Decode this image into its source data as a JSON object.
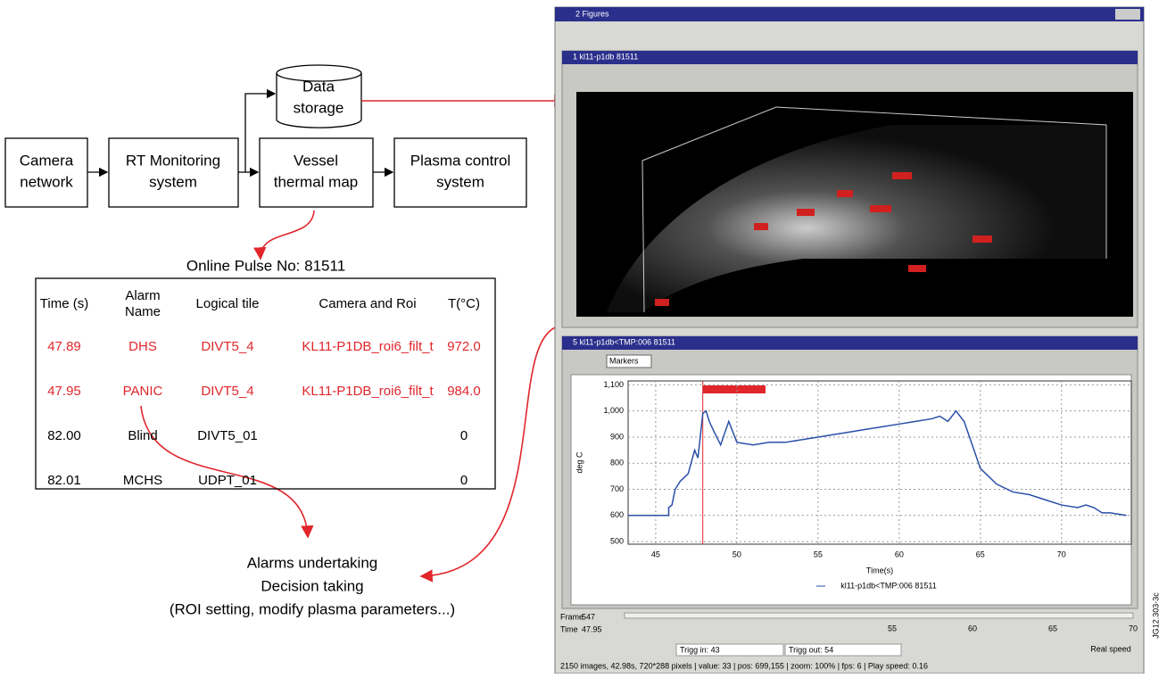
{
  "diagram": {
    "nodes": [
      {
        "lines": [
          "Camera",
          "network"
        ]
      },
      {
        "lines": [
          "RT Monitoring",
          "system"
        ]
      },
      {
        "lines": [
          "Data",
          "storage"
        ]
      },
      {
        "lines": [
          "Vessel",
          "thermal map"
        ]
      },
      {
        "lines": [
          "Plasma control",
          "system"
        ]
      }
    ],
    "outcome": [
      "Alarms undertaking",
      "Decision taking",
      "(ROI setting, modify plasma parameters...)"
    ],
    "figure_id": "JG12.303-3c"
  },
  "table": {
    "title": "Online Pulse No: 81511",
    "headers": [
      [
        "Time (s)"
      ],
      [
        "Alarm",
        "Name"
      ],
      [
        "Logical tile"
      ],
      [
        "Camera and Roi"
      ],
      [
        "T(°C)"
      ]
    ],
    "rows": [
      [
        "47.89",
        "DHS",
        "DIVT5_4",
        "KL11-P1DB_roi6_filt_t",
        "972.0"
      ],
      [
        "47.95",
        "PANIC",
        "DIVT5_4",
        "KL11-P1DB_roi6_filt_t",
        "984.0"
      ],
      [
        "82.00",
        "Blind",
        "DIVT5_01",
        "",
        "0"
      ],
      [
        "82.01",
        "MCHS",
        "UDPT_01",
        "",
        "0"
      ]
    ]
  },
  "window": {
    "title": "2 Figures",
    "panel1_title": "1 kl11-p1db 81511",
    "panel2_title": "5 kl11-p1db<TMP:006 81511",
    "markers": "Markers",
    "frame_label": "Frame",
    "frame": "547",
    "time_label": "Time",
    "time": "47.95",
    "slider_ticks": [
      "55",
      "60",
      "65",
      "70"
    ],
    "trigg_in": "Trigg in: 43",
    "trigg_out": "Trigg out: 54",
    "real_speed": "Real speed",
    "status": "2150 images, 42.98s, 720*288 pixels | value: 33 | pos: 699,155 | zoom: 100% | fps: 6 | Play speed: 0.16"
  },
  "plot": {
    "xlabel": "Time(s)",
    "ylabel": "deg C",
    "legend": "kl11-p1db<TMP:006 81511",
    "xlim": [
      43.3,
      74.3
    ],
    "ylim": [
      490,
      1115
    ],
    "xticks": [
      45,
      50,
      55,
      60,
      65,
      70
    ],
    "yticks": [
      500,
      600,
      700,
      800,
      900,
      {
        "value": 1000,
        "label": "1,000"
      },
      {
        "value": 1100,
        "label": "1,100"
      }
    ],
    "series": [
      {
        "color": "#2a4fa8",
        "x": [
          43.3,
          45,
          45.8,
          45.8,
          46,
          46.2,
          46.5,
          47,
          47.4,
          47.6,
          47.9,
          48.1,
          48.3,
          48.6,
          49,
          49.5,
          50,
          51,
          52,
          53,
          54,
          55,
          56,
          57,
          58,
          59,
          60,
          61,
          62,
          62.5,
          63,
          63.5,
          64,
          64.5,
          65,
          66,
          67,
          68,
          69,
          70,
          71,
          71.5,
          72,
          72.5,
          73,
          74
        ],
        "values": [
          600,
          600,
          600,
          630,
          640,
          700,
          730,
          760,
          850,
          820,
          990,
          1000,
          960,
          920,
          870,
          960,
          880,
          870,
          880,
          880,
          890,
          900,
          910,
          920,
          930,
          940,
          950,
          960,
          970,
          980,
          960,
          1000,
          960,
          870,
          780,
          720,
          690,
          680,
          660,
          640,
          630,
          640,
          630,
          610,
          610,
          600
        ]
      }
    ]
  }
}
